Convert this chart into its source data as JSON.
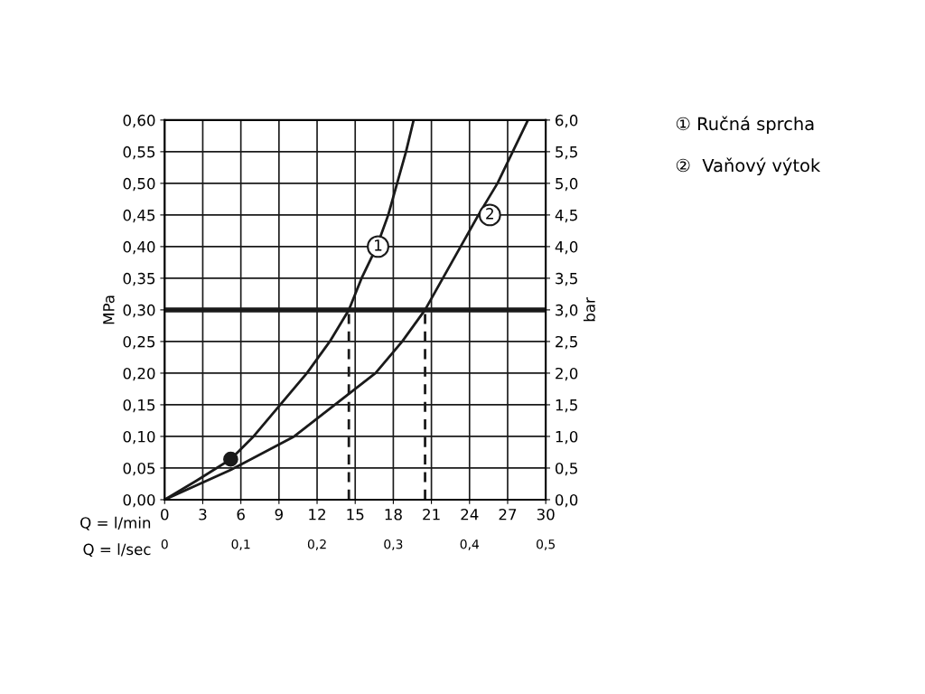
{
  "chart_data": {
    "type": "line",
    "xlabel": "Q = l/min",
    "x2label": "Q = l/sec",
    "ylabel": "MPa",
    "y2label": "bar",
    "xlim": [
      0,
      30
    ],
    "xticks": [
      0,
      3,
      6,
      9,
      12,
      15,
      18,
      21,
      24,
      27,
      30
    ],
    "x2lim": [
      0,
      0.5
    ],
    "x2ticks": [
      0,
      {
        "value": 0.1,
        "label": "0,1"
      },
      {
        "value": 0.2,
        "label": "0,2"
      },
      {
        "value": 0.3,
        "label": "0,3"
      },
      {
        "value": 0.4,
        "label": "0,4"
      },
      {
        "value": 0.5,
        "label": "0,5"
      }
    ],
    "ylim": [
      0,
      0.6
    ],
    "yticks": [
      {
        "value": 0,
        "label": "0,00"
      },
      {
        "value": 0.05,
        "label": "0,05"
      },
      {
        "value": 0.1,
        "label": "0,10"
      },
      {
        "value": 0.15,
        "label": "0,15"
      },
      {
        "value": 0.2,
        "label": "0,20"
      },
      {
        "value": 0.25,
        "label": "0,25"
      },
      {
        "value": 0.3,
        "label": "0,30"
      },
      {
        "value": 0.35,
        "label": "0,35"
      },
      {
        "value": 0.4,
        "label": "0,40"
      },
      {
        "value": 0.45,
        "label": "0,45"
      },
      {
        "value": 0.5,
        "label": "0,50"
      },
      {
        "value": 0.55,
        "label": "0,55"
      },
      {
        "value": 0.6,
        "label": "0,60"
      }
    ],
    "y2lim": [
      0,
      6
    ],
    "y2ticks": [
      {
        "value": 0,
        "label": "0,0"
      },
      {
        "value": 0.5,
        "label": "0,5"
      },
      {
        "value": 1,
        "label": "1,0"
      },
      {
        "value": 1.5,
        "label": "1,5"
      },
      {
        "value": 2,
        "label": "2,0"
      },
      {
        "value": 2.5,
        "label": "2,5"
      },
      {
        "value": 3,
        "label": "3,0"
      },
      {
        "value": 3.5,
        "label": "3,5"
      },
      {
        "value": 4,
        "label": "4,0"
      },
      {
        "value": 4.5,
        "label": "4,5"
      },
      {
        "value": 5,
        "label": "5,0"
      },
      {
        "value": 5.5,
        "label": "5,5"
      },
      {
        "value": 6,
        "label": "6,0"
      }
    ],
    "grid": true,
    "series": [
      {
        "color": "#1a1a1a",
        "line_style": "solid",
        "x": [
          0,
          2.5,
          5.2,
          7.0,
          9.1,
          11.2,
          13.0,
          14.5,
          15.5,
          16.7,
          17.6,
          18.3,
          19.0,
          19.6
        ],
        "values": [
          0,
          0.03,
          0.064,
          0.1,
          0.15,
          0.2,
          0.25,
          0.3,
          0.35,
          0.4,
          0.45,
          0.5,
          0.55,
          0.6
        ]
      },
      {
        "color": "#1a1a1a",
        "line_style": "solid",
        "x": [
          0,
          5.2,
          10.2,
          13.4,
          16.6,
          18.7,
          20.5,
          21.9,
          23.3,
          24.7,
          26.2,
          27.4,
          28.6
        ],
        "values": [
          0,
          0.047,
          0.1,
          0.15,
          0.2,
          0.25,
          0.3,
          0.35,
          0.4,
          0.45,
          0.5,
          0.55,
          0.6
        ]
      },
      {
        "color": "#1a1a1a",
        "line_style": "dashed",
        "x": [
          14.5,
          14.5
        ],
        "values": [
          0,
          0.3
        ]
      },
      {
        "color": "#1a1a1a",
        "line_style": "dashed",
        "x": [
          20.5,
          20.5
        ],
        "values": [
          0,
          0.3
        ]
      },
      {
        "type": "scatter",
        "color": "#1a1a1a",
        "marker": "circle",
        "x": [
          5.2
        ],
        "values": [
          0.064
        ]
      }
    ],
    "ref_lines": [
      {
        "axis": "y",
        "value": 0.3,
        "color": "#1a1a1a",
        "line_style": "solid"
      }
    ],
    "annotations": [
      {
        "text": "1",
        "x": 16.8,
        "y": 0.4
      },
      {
        "text": "2",
        "x": 25.6,
        "y": 0.45
      },
      "① Ručná sprcha",
      "②  Vaňový výtok"
    ]
  }
}
